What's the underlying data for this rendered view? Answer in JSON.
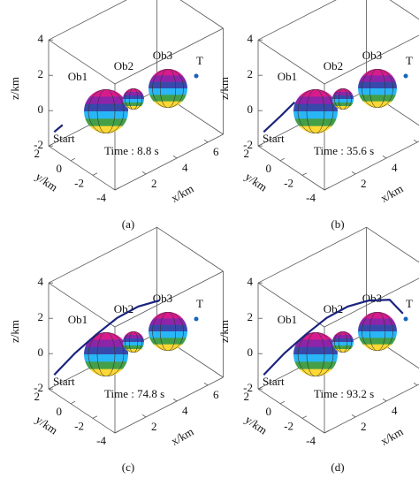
{
  "chart_data": [
    {
      "type": "line3d",
      "caption": "(a)",
      "xlabel": "x/km",
      "ylabel": "y/km",
      "zlabel": "z/km",
      "annotations": {
        "ob1": "Ob1",
        "ob2": "Ob2",
        "ob3": "Ob3",
        "target": "T",
        "start": "Start",
        "time": "Time : 8.8 s"
      },
      "xlim": [
        0,
        7
      ],
      "ylim": [
        -4,
        2
      ],
      "zlim": [
        -2,
        4
      ],
      "xticks": [
        2,
        4,
        6
      ],
      "yticks": [
        2,
        0,
        -2,
        -4
      ],
      "zticks": [
        -2,
        0,
        2,
        4
      ],
      "color": "#1a237e",
      "x": [
        0,
        0.4
      ],
      "y": [
        1.5,
        1.3
      ],
      "z": [
        -1,
        -0.7
      ]
    },
    {
      "type": "line3d",
      "caption": "(b)",
      "xlabel": "x/km",
      "ylabel": "y/km",
      "zlabel": "z/km",
      "annotations": {
        "ob1": "Ob1",
        "ob2": "Ob2",
        "ob3": "Ob3",
        "target": "T",
        "start": "Start",
        "time": "Time : 35.6 s"
      },
      "xlim": [
        0,
        7
      ],
      "ylim": [
        -4,
        2
      ],
      "zlim": [
        -2,
        4
      ],
      "xticks": [
        2,
        4,
        6
      ],
      "yticks": [
        2,
        0,
        -2,
        -4
      ],
      "zticks": [
        -2,
        0,
        2,
        4
      ],
      "color": "#1a237e",
      "x": [
        0,
        0.8,
        1.5
      ],
      "y": [
        1.5,
        1.1,
        0.8
      ],
      "z": [
        -1,
        -0.3,
        0.3
      ]
    },
    {
      "type": "line3d",
      "caption": "(c)",
      "xlabel": "x/km",
      "ylabel": "y/km",
      "zlabel": "z/km",
      "annotations": {
        "ob1": "Ob1",
        "ob2": "Ob2",
        "ob3": "Ob3",
        "target": "T",
        "start": "Start",
        "time": "Time : 74.8 s"
      },
      "xlim": [
        0,
        7
      ],
      "ylim": [
        -4,
        2
      ],
      "zlim": [
        -2,
        4
      ],
      "xticks": [
        2,
        4,
        6
      ],
      "yticks": [
        2,
        0,
        -2,
        -4
      ],
      "zticks": [
        -2,
        0,
        2,
        4
      ],
      "color": "#1a237e",
      "x": [
        0,
        1,
        2,
        3,
        4,
        5
      ],
      "y": [
        1.5,
        1,
        0.5,
        0,
        -0.5,
        -1
      ],
      "z": [
        -1,
        0,
        0.8,
        1.5,
        1.9,
        2
      ]
    },
    {
      "type": "line3d",
      "caption": "(d)",
      "xlabel": "x/km",
      "ylabel": "y/km",
      "zlabel": "z/km",
      "annotations": {
        "ob1": "Ob1",
        "ob2": "Ob2",
        "ob3": "Ob3",
        "target": "T",
        "start": "Start",
        "time": "Time : 93.2 s"
      },
      "xlim": [
        0,
        7
      ],
      "ylim": [
        -4,
        2
      ],
      "zlim": [
        -2,
        4
      ],
      "xticks": [
        2,
        4,
        6
      ],
      "yticks": [
        2,
        0,
        -2,
        -4
      ],
      "zticks": [
        -2,
        0,
        2,
        4
      ],
      "color": "#1a237e",
      "x": [
        0,
        1,
        2,
        3,
        4,
        5,
        6,
        6.5
      ],
      "y": [
        1.5,
        1,
        0.5,
        0,
        -0.5,
        -1,
        -1.5,
        -2
      ],
      "z": [
        -1,
        0,
        0.8,
        1.5,
        1.9,
        2,
        1.8,
        1
      ]
    }
  ]
}
